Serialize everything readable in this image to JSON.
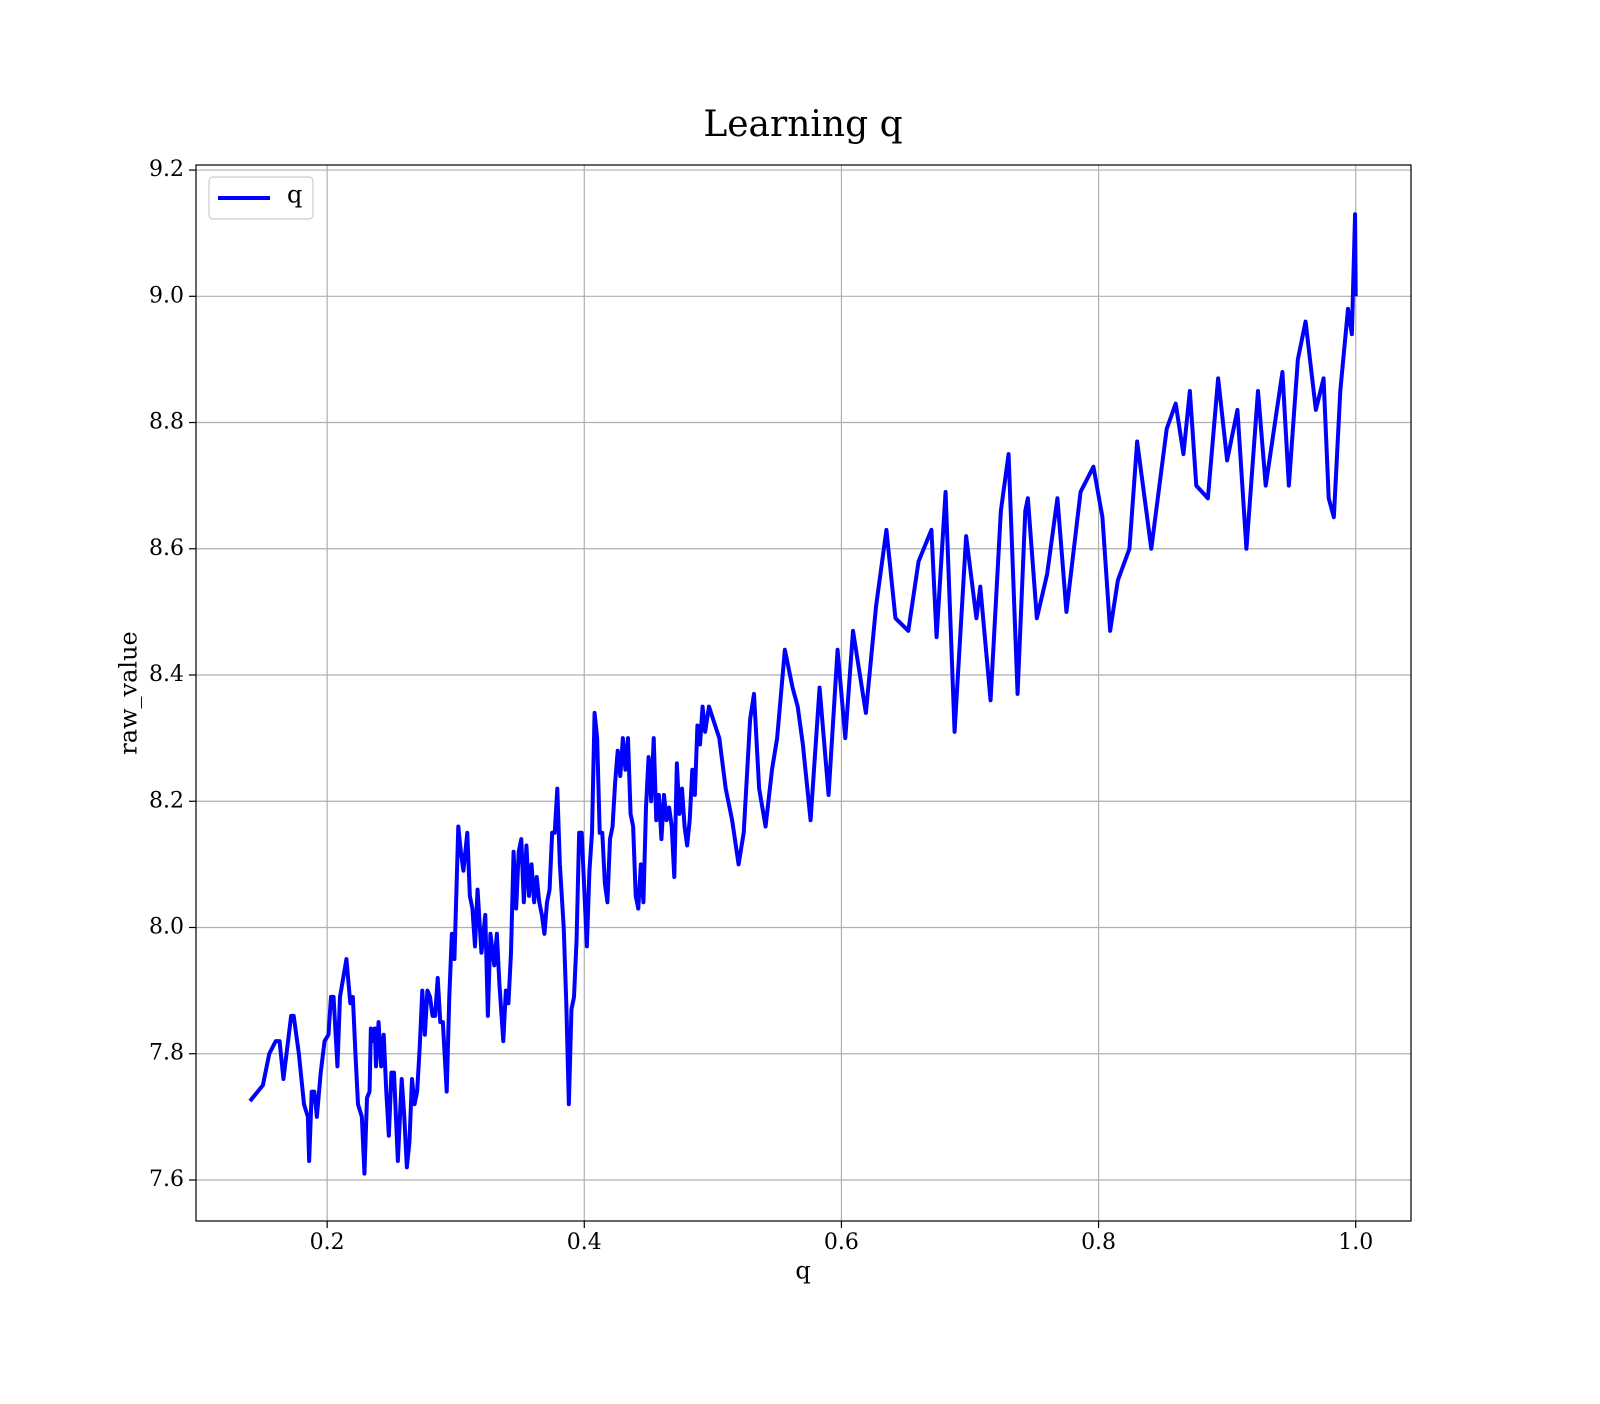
{
  "chart_data": {
    "type": "line",
    "title": "Learning q",
    "xlabel": "q",
    "ylabel": "raw_value",
    "xlim": [
      0.098,
      1.043
    ],
    "ylim": [
      7.535,
      9.208
    ],
    "xticks": [
      0.2,
      0.4,
      0.6,
      0.8,
      {
        "value": 1,
        "label": "1.0"
      }
    ],
    "yticks": [
      7.6,
      7.8,
      {
        "value": 8,
        "label": "8.0"
      },
      8.2,
      8.4,
      8.6,
      8.8,
      {
        "value": 9,
        "label": "9.0"
      },
      9.2
    ],
    "grid": true,
    "legend": "upper left",
    "x": [
      0.14,
      0.15,
      0.155,
      0.16,
      0.163,
      0.166,
      0.172,
      0.174,
      0.178,
      0.182,
      0.185,
      0.186,
      0.188,
      0.19,
      0.192,
      0.195,
      0.198,
      0.201,
      0.203,
      0.205,
      0.208,
      0.21,
      0.215,
      0.218,
      0.22,
      0.222,
      0.224,
      0.227,
      0.229,
      0.231,
      0.233,
      0.234,
      0.236,
      0.237,
      0.238,
      0.24,
      0.242,
      0.244,
      0.246,
      0.248,
      0.25,
      0.252,
      0.255,
      0.258,
      0.26,
      0.262,
      0.264,
      0.266,
      0.268,
      0.27,
      0.272,
      0.274,
      0.276,
      0.278,
      0.28,
      0.282,
      0.284,
      0.286,
      0.288,
      0.29,
      0.293,
      0.295,
      0.297,
      0.299,
      0.302,
      0.304,
      0.306,
      0.309,
      0.311,
      0.313,
      0.315,
      0.317,
      0.32,
      0.323,
      0.325,
      0.327,
      0.33,
      0.332,
      0.334,
      0.337,
      0.339,
      0.341,
      0.343,
      0.345,
      0.347,
      0.349,
      0.351,
      0.353,
      0.355,
      0.357,
      0.359,
      0.361,
      0.363,
      0.365,
      0.367,
      0.369,
      0.371,
      0.373,
      0.375,
      0.377,
      0.379,
      0.381,
      0.384,
      0.386,
      0.388,
      0.39,
      0.392,
      0.394,
      0.396,
      0.398,
      0.4,
      0.402,
      0.404,
      0.406,
      0.408,
      0.41,
      0.412,
      0.414,
      0.416,
      0.418,
      0.42,
      0.422,
      0.424,
      0.426,
      0.428,
      0.43,
      0.432,
      0.434,
      0.436,
      0.438,
      0.44,
      0.442,
      0.444,
      0.446,
      0.448,
      0.45,
      0.452,
      0.454,
      0.456,
      0.458,
      0.46,
      0.462,
      0.464,
      0.466,
      0.468,
      0.47,
      0.472,
      0.474,
      0.476,
      0.478,
      0.48,
      0.482,
      0.484,
      0.486,
      0.488,
      0.49,
      0.492,
      0.494,
      0.497,
      0.505,
      0.51,
      0.515,
      0.52,
      0.524,
      0.529,
      0.532,
      0.536,
      0.541,
      0.546,
      0.55,
      0.556,
      0.562,
      0.566,
      0.57,
      0.576,
      0.583,
      0.59,
      0.597,
      0.603,
      0.609,
      0.619,
      0.627,
      0.635,
      0.642,
      0.652,
      0.66,
      0.67,
      0.674,
      0.681,
      0.688,
      0.697,
      0.705,
      0.708,
      0.716,
      0.724,
      0.73,
      0.737,
      0.743,
      0.745,
      0.752,
      0.76,
      0.768,
      0.775,
      0.786,
      0.796,
      0.803,
      0.809,
      0.815,
      0.824,
      0.83,
      0.841,
      0.853,
      0.86,
      0.866,
      0.871,
      0.876,
      0.885,
      0.893,
      0.9,
      0.908,
      0.915,
      0.924,
      0.93,
      0.943,
      0.948,
      0.955,
      0.961,
      0.969,
      0.975,
      0.979,
      0.983,
      0.988,
      0.994,
      0.997,
      0.9995,
      1.0
    ],
    "series": [
      {
        "name": "q",
        "color": "#0000ff",
        "values": [
          7.725,
          7.75,
          7.8,
          7.82,
          7.82,
          7.76,
          7.86,
          7.86,
          7.8,
          7.72,
          7.7,
          7.63,
          7.74,
          7.74,
          7.7,
          7.77,
          7.82,
          7.83,
          7.89,
          7.89,
          7.78,
          7.89,
          7.95,
          7.88,
          7.89,
          7.8,
          7.72,
          7.7,
          7.61,
          7.73,
          7.74,
          7.84,
          7.82,
          7.84,
          7.78,
          7.85,
          7.78,
          7.83,
          7.74,
          7.67,
          7.77,
          7.77,
          7.63,
          7.76,
          7.7,
          7.62,
          7.66,
          7.76,
          7.72,
          7.74,
          7.81,
          7.9,
          7.83,
          7.9,
          7.89,
          7.86,
          7.86,
          7.92,
          7.85,
          7.85,
          7.74,
          7.89,
          7.99,
          7.95,
          8.16,
          8.12,
          8.09,
          8.15,
          8.05,
          8.03,
          7.97,
          8.06,
          7.96,
          8.02,
          7.86,
          7.99,
          7.94,
          7.99,
          7.91,
          7.82,
          7.9,
          7.88,
          7.96,
          8.12,
          8.03,
          8.12,
          8.14,
          8.04,
          8.13,
          8.05,
          8.1,
          8.04,
          8.08,
          8.04,
          8.02,
          7.99,
          8.04,
          8.06,
          8.15,
          8.15,
          8.22,
          8.1,
          8.0,
          7.88,
          7.72,
          7.87,
          7.89,
          7.98,
          8.15,
          8.15,
          8.06,
          7.97,
          8.09,
          8.15,
          8.34,
          8.3,
          8.15,
          8.15,
          8.07,
          8.04,
          8.14,
          8.16,
          8.23,
          8.28,
          8.24,
          8.3,
          8.25,
          8.3,
          8.18,
          8.16,
          8.05,
          8.03,
          8.1,
          8.04,
          8.19,
          8.27,
          8.2,
          8.3,
          8.17,
          8.21,
          8.14,
          8.21,
          8.17,
          8.19,
          8.16,
          8.08,
          8.26,
          8.18,
          8.22,
          8.16,
          8.13,
          8.17,
          8.25,
          8.21,
          8.32,
          8.29,
          8.35,
          8.31,
          8.35,
          8.3,
          8.22,
          8.17,
          8.1,
          8.15,
          8.33,
          8.37,
          8.22,
          8.16,
          8.25,
          8.3,
          8.44,
          8.38,
          8.35,
          8.29,
          8.17,
          8.38,
          8.21,
          8.44,
          8.3,
          8.47,
          8.34,
          8.51,
          8.63,
          8.49,
          8.47,
          8.58,
          8.63,
          8.46,
          8.69,
          8.31,
          8.62,
          8.49,
          8.54,
          8.36,
          8.66,
          8.75,
          8.37,
          8.66,
          8.68,
          8.49,
          8.56,
          8.68,
          8.5,
          8.69,
          8.73,
          8.65,
          8.47,
          8.55,
          8.6,
          8.77,
          8.6,
          8.79,
          8.83,
          8.75,
          8.85,
          8.7,
          8.68,
          8.87,
          8.74,
          8.82,
          8.6,
          8.85,
          8.7,
          8.88,
          8.7,
          8.9,
          8.96,
          8.82,
          8.87,
          8.68,
          8.65,
          8.85,
          8.98,
          8.94,
          9.13,
          9.0
        ]
      }
    ]
  }
}
